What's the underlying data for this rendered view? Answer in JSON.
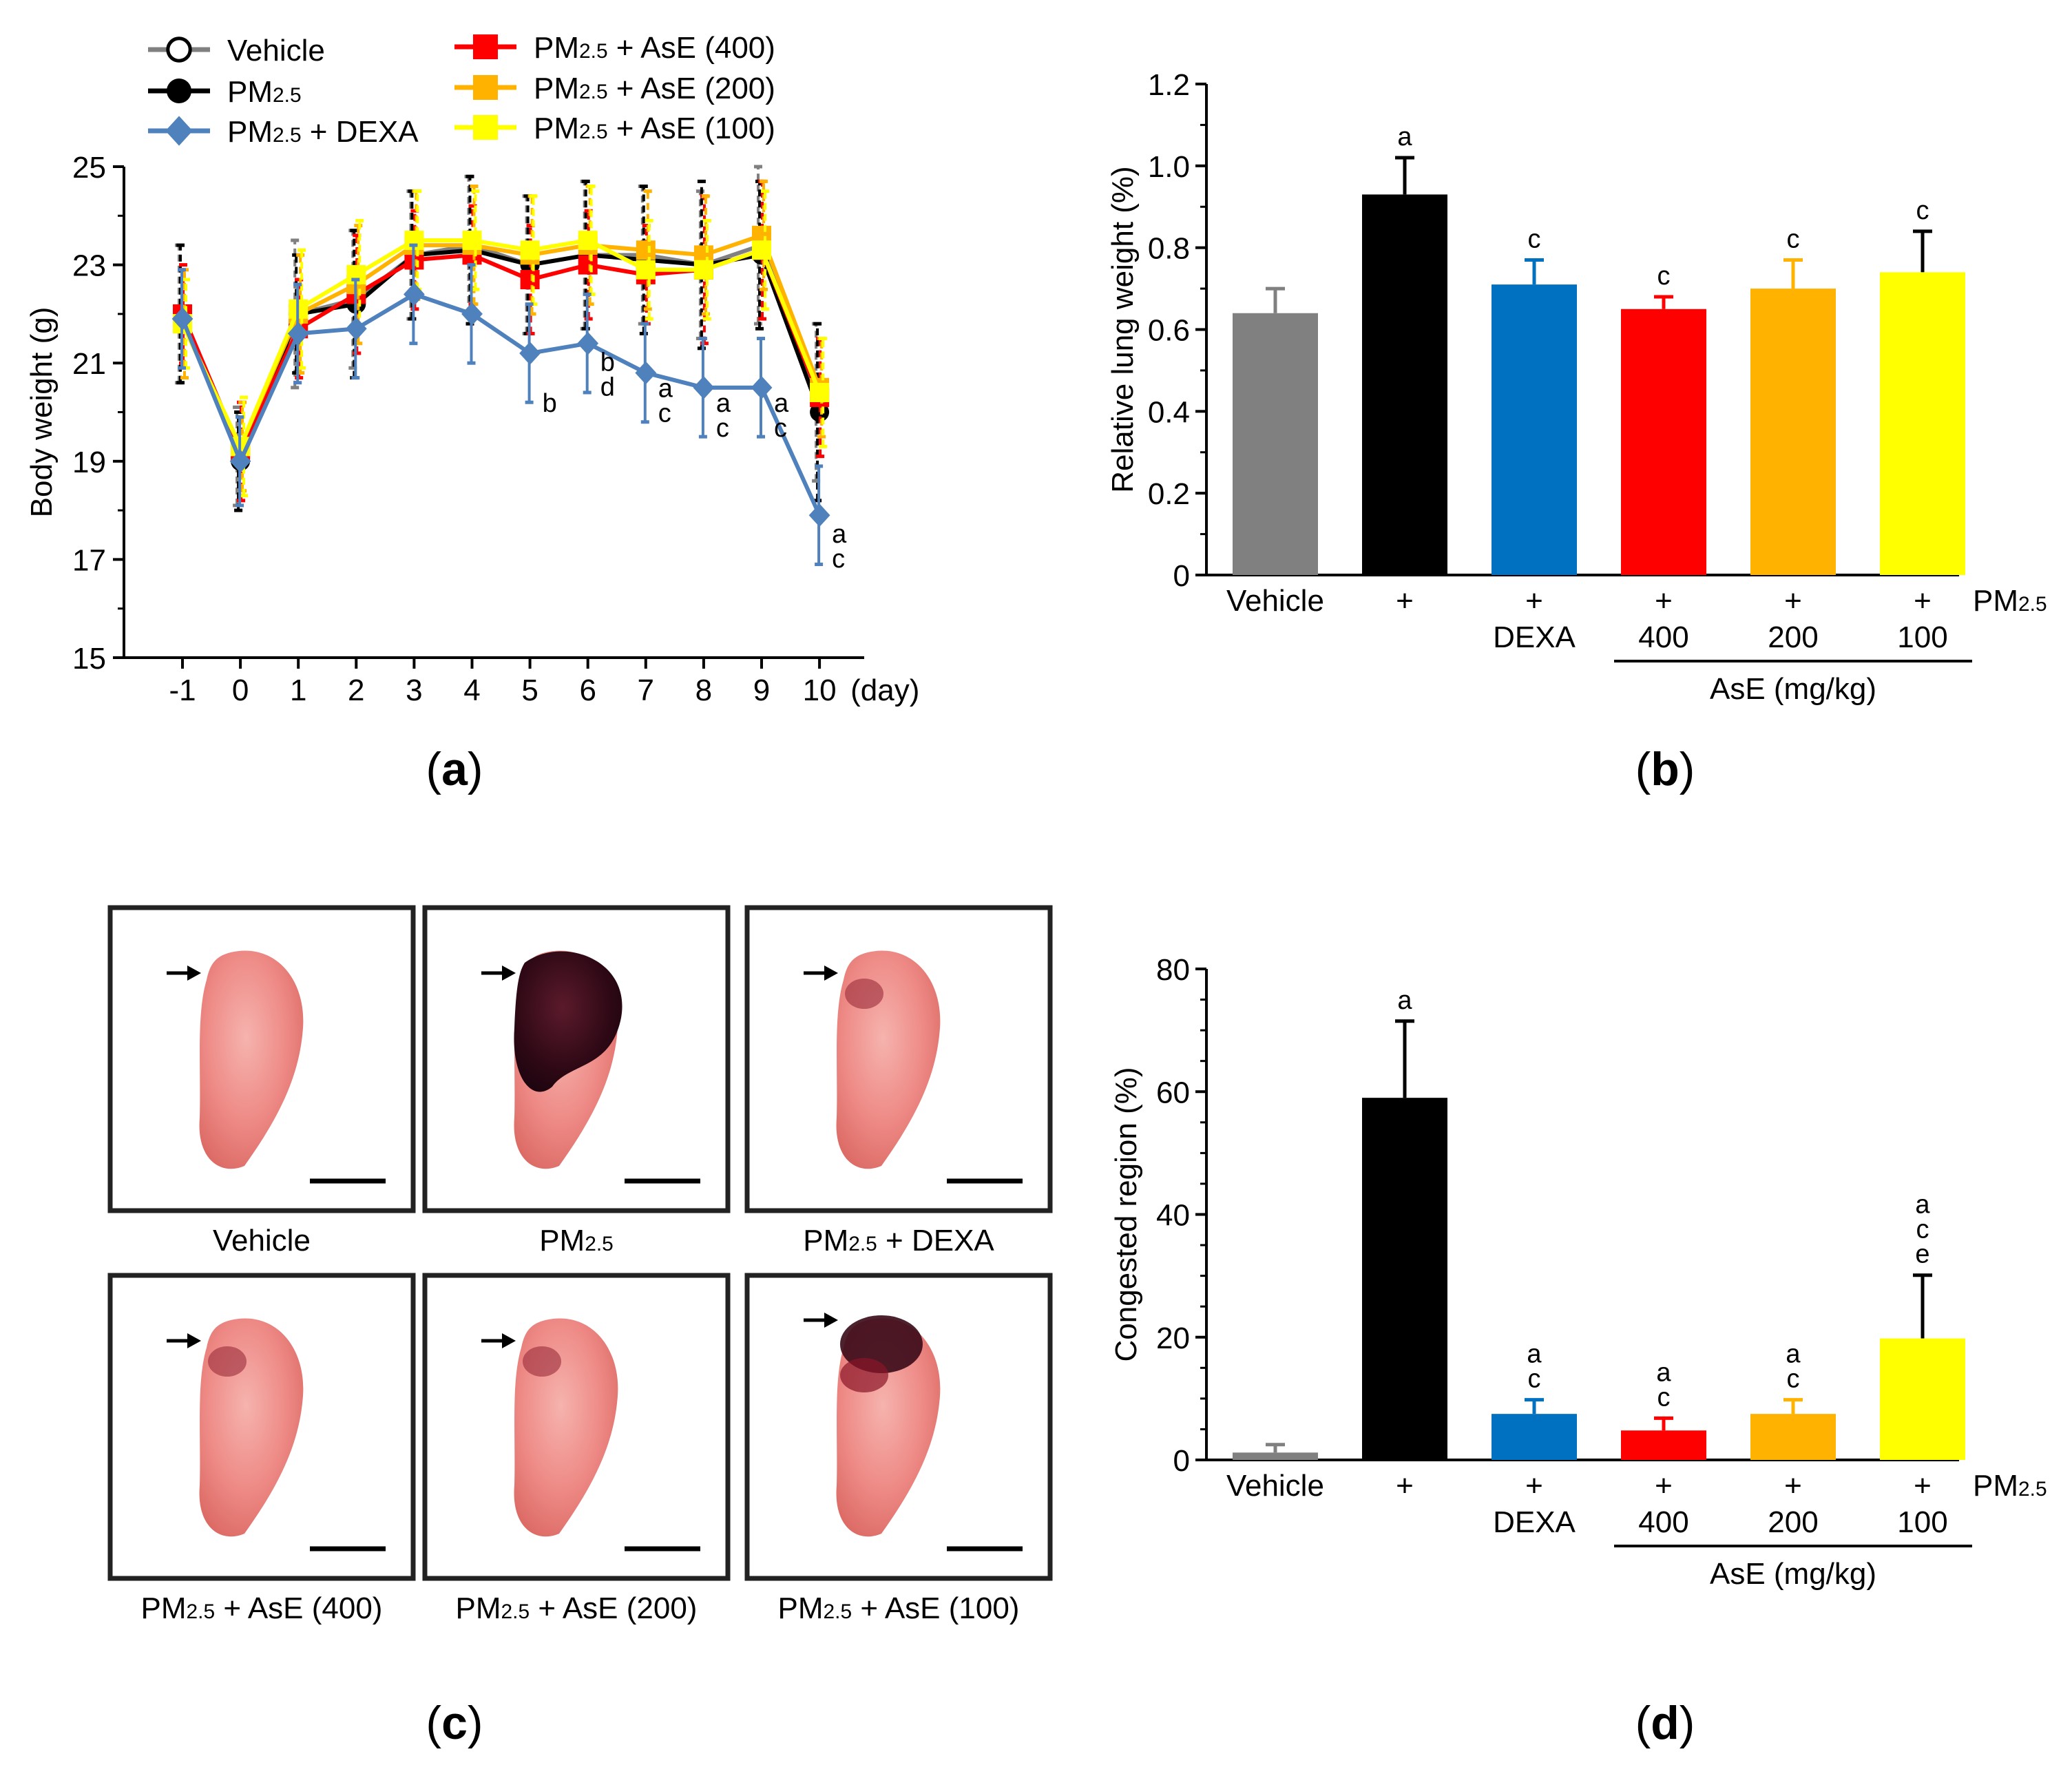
{
  "panels": {
    "a": "a",
    "b": "b",
    "c": "c",
    "d": "d"
  },
  "colors": {
    "vehicle": "#808080",
    "pm": "#000000",
    "dexa": "#4F81BD",
    "dexa_bar": "#0070C0",
    "ase400": "#FF0000",
    "ase200": "#FFB300",
    "ase100": "#FFFF00"
  },
  "chart_data": [
    {
      "id": "a",
      "type": "line",
      "ylabel": "Body weight (g)",
      "xlabel": "",
      "x_unit": "(day)",
      "x": [
        -1,
        0,
        1,
        2,
        3,
        4,
        5,
        6,
        7,
        8,
        9,
        10
      ],
      "x_ticks": [
        "-1",
        "0",
        "1",
        "2",
        "3",
        "4",
        "5",
        "6",
        "7",
        "8",
        "9",
        "10"
      ],
      "ylim": [
        15,
        25
      ],
      "y_ticks": [
        "15",
        "17",
        "19",
        "21",
        "23",
        "25"
      ],
      "legend": [
        {
          "name": "Vehicle",
          "marker": "open-circle",
          "color_key": "vehicle"
        },
        {
          "name": "PM",
          "sub": "2.5",
          "suffix": "",
          "marker": "circle",
          "color_key": "pm"
        },
        {
          "name": "PM",
          "sub": "2.5",
          "suffix": " + DEXA",
          "marker": "diamond",
          "color_key": "dexa"
        },
        {
          "name": "PM",
          "sub": "2.5",
          "suffix": " + AsE (400)",
          "marker": "square",
          "color_key": "ase400"
        },
        {
          "name": "PM",
          "sub": "2.5",
          "suffix": " + AsE (200)",
          "marker": "square",
          "color_key": "ase200"
        },
        {
          "name": "PM",
          "sub": "2.5",
          "suffix": " + AsE (100)",
          "marker": "square",
          "color_key": "ase100"
        }
      ],
      "series": [
        {
          "name": "Vehicle",
          "color_key": "vehicle",
          "values": [
            22.0,
            19.1,
            22.0,
            22.3,
            23.2,
            23.4,
            23.0,
            23.2,
            23.2,
            23.0,
            23.4,
            20.2
          ],
          "errors": [
            1.4,
            1.0,
            1.5,
            1.4,
            1.3,
            1.4,
            1.4,
            1.5,
            1.4,
            1.5,
            1.6,
            1.6
          ]
        },
        {
          "name": "PM2.5",
          "color_key": "pm",
          "values": [
            22.0,
            19.0,
            22.0,
            22.2,
            23.2,
            23.3,
            23.0,
            23.2,
            23.1,
            23.0,
            23.2,
            20.0
          ],
          "errors": [
            1.4,
            1.0,
            1.2,
            1.5,
            1.3,
            1.5,
            1.4,
            1.5,
            1.5,
            1.7,
            1.5,
            1.8
          ]
        },
        {
          "name": "PM2.5 + DEXA",
          "color_key": "dexa",
          "values": [
            21.9,
            19.0,
            21.6,
            21.7,
            22.4,
            22.0,
            21.2,
            21.4,
            20.8,
            20.5,
            20.5,
            17.9
          ],
          "errors": [
            1.0,
            0.9,
            1.0,
            1.0,
            1.0,
            1.0,
            1.0,
            1.0,
            1.0,
            1.0,
            1.0,
            1.0
          ]
        },
        {
          "name": "PM2.5 + AsE (400)",
          "color_key": "ase400",
          "values": [
            22.0,
            19.2,
            21.7,
            22.4,
            23.1,
            23.2,
            22.7,
            23.0,
            22.8,
            22.9,
            23.3,
            20.3
          ],
          "errors": [
            1.0,
            1.0,
            1.0,
            1.2,
            1.0,
            1.0,
            1.1,
            1.1,
            1.0,
            1.5,
            1.4,
            1.2
          ]
        },
        {
          "name": "PM2.5 + AsE (200)",
          "color_key": "ase200",
          "values": [
            21.8,
            19.3,
            22.0,
            22.6,
            23.4,
            23.4,
            23.2,
            23.4,
            23.3,
            23.2,
            23.6,
            20.5
          ],
          "errors": [
            1.1,
            0.9,
            1.2,
            1.2,
            1.1,
            1.2,
            1.2,
            1.2,
            1.2,
            1.2,
            1.1,
            1.0
          ]
        },
        {
          "name": "PM2.5 + AsE (100)",
          "color_key": "ase100",
          "values": [
            21.8,
            19.3,
            22.1,
            22.8,
            23.5,
            23.5,
            23.3,
            23.5,
            22.9,
            22.9,
            23.3,
            20.4
          ],
          "errors": [
            0.9,
            1.0,
            1.2,
            1.1,
            1.0,
            1.0,
            1.1,
            1.1,
            1.0,
            1.0,
            1.2,
            1.1
          ]
        }
      ],
      "annotations": [
        {
          "x": 5,
          "text": "b"
        },
        {
          "x": 6,
          "text": "b\nd"
        },
        {
          "x": 7,
          "text": "a\nc"
        },
        {
          "x": 8,
          "text": "a\nc"
        },
        {
          "x": 9,
          "text": "a\nc"
        },
        {
          "x": 10,
          "text": "a\nc"
        }
      ]
    },
    {
      "id": "b",
      "type": "bar",
      "ylabel": "Relative lung weight (%)",
      "ylim": [
        0,
        1.2
      ],
      "y_ticks": [
        "0",
        "0.2",
        "0.4",
        "0.6",
        "0.8",
        "1.0",
        "1.2"
      ],
      "categories": [
        "Vehicle",
        "+",
        "+",
        "+",
        "+",
        "+"
      ],
      "sublabels": [
        "",
        "",
        "DEXA",
        "400",
        "200",
        "100"
      ],
      "values": [
        0.64,
        0.93,
        0.71,
        0.65,
        0.7,
        0.74
      ],
      "errors": [
        0.06,
        0.09,
        0.06,
        0.03,
        0.07,
        0.1
      ],
      "letters": [
        "",
        "a",
        "c",
        "c",
        "c",
        "c"
      ],
      "bar_colors": [
        "vehicle",
        "pm",
        "dexa_bar",
        "ase400",
        "ase200",
        "ase100"
      ],
      "right_label": {
        "main": "PM",
        "sub": "2.5"
      },
      "group_label": "AsE (mg/kg)"
    },
    {
      "id": "d",
      "type": "bar",
      "ylabel": "Congested region (%)",
      "ylim": [
        0,
        80
      ],
      "y_ticks": [
        "0",
        "20",
        "40",
        "60",
        "80"
      ],
      "categories": [
        "Vehicle",
        "+",
        "+",
        "+",
        "+",
        "+"
      ],
      "sublabels": [
        "",
        "",
        "DEXA",
        "400",
        "200",
        "100"
      ],
      "values": [
        1.2,
        59.0,
        7.5,
        4.8,
        7.5,
        19.8
      ],
      "errors": [
        1.3,
        12.5,
        2.3,
        2.0,
        2.3,
        10.3
      ],
      "letters": [
        "",
        "a",
        "a\nc",
        "a\nc",
        "a\nc",
        "a\nc\ne"
      ],
      "bar_colors": [
        "vehicle",
        "pm",
        "dexa_bar",
        "ase400",
        "ase200",
        "ase100"
      ],
      "right_label": {
        "main": "PM",
        "sub": "2.5"
      },
      "group_label": "AsE (mg/kg)"
    }
  ],
  "lung_photos": [
    {
      "label": {
        "main": "Vehicle",
        "sub": "",
        "suffix": ""
      },
      "congestion": "none"
    },
    {
      "label": {
        "main": "PM",
        "sub": "2.5",
        "suffix": ""
      },
      "congestion": "heavy"
    },
    {
      "label": {
        "main": "PM",
        "sub": "2.5",
        "suffix": " + DEXA"
      },
      "congestion": "light"
    },
    {
      "label": {
        "main": "PM",
        "sub": "2.5",
        "suffix": " + AsE (400)"
      },
      "congestion": "light"
    },
    {
      "label": {
        "main": "PM",
        "sub": "2.5",
        "suffix": " + AsE (200)"
      },
      "congestion": "light"
    },
    {
      "label": {
        "main": "PM",
        "sub": "2.5",
        "suffix": " + AsE (100)"
      },
      "congestion": "moderate"
    }
  ]
}
